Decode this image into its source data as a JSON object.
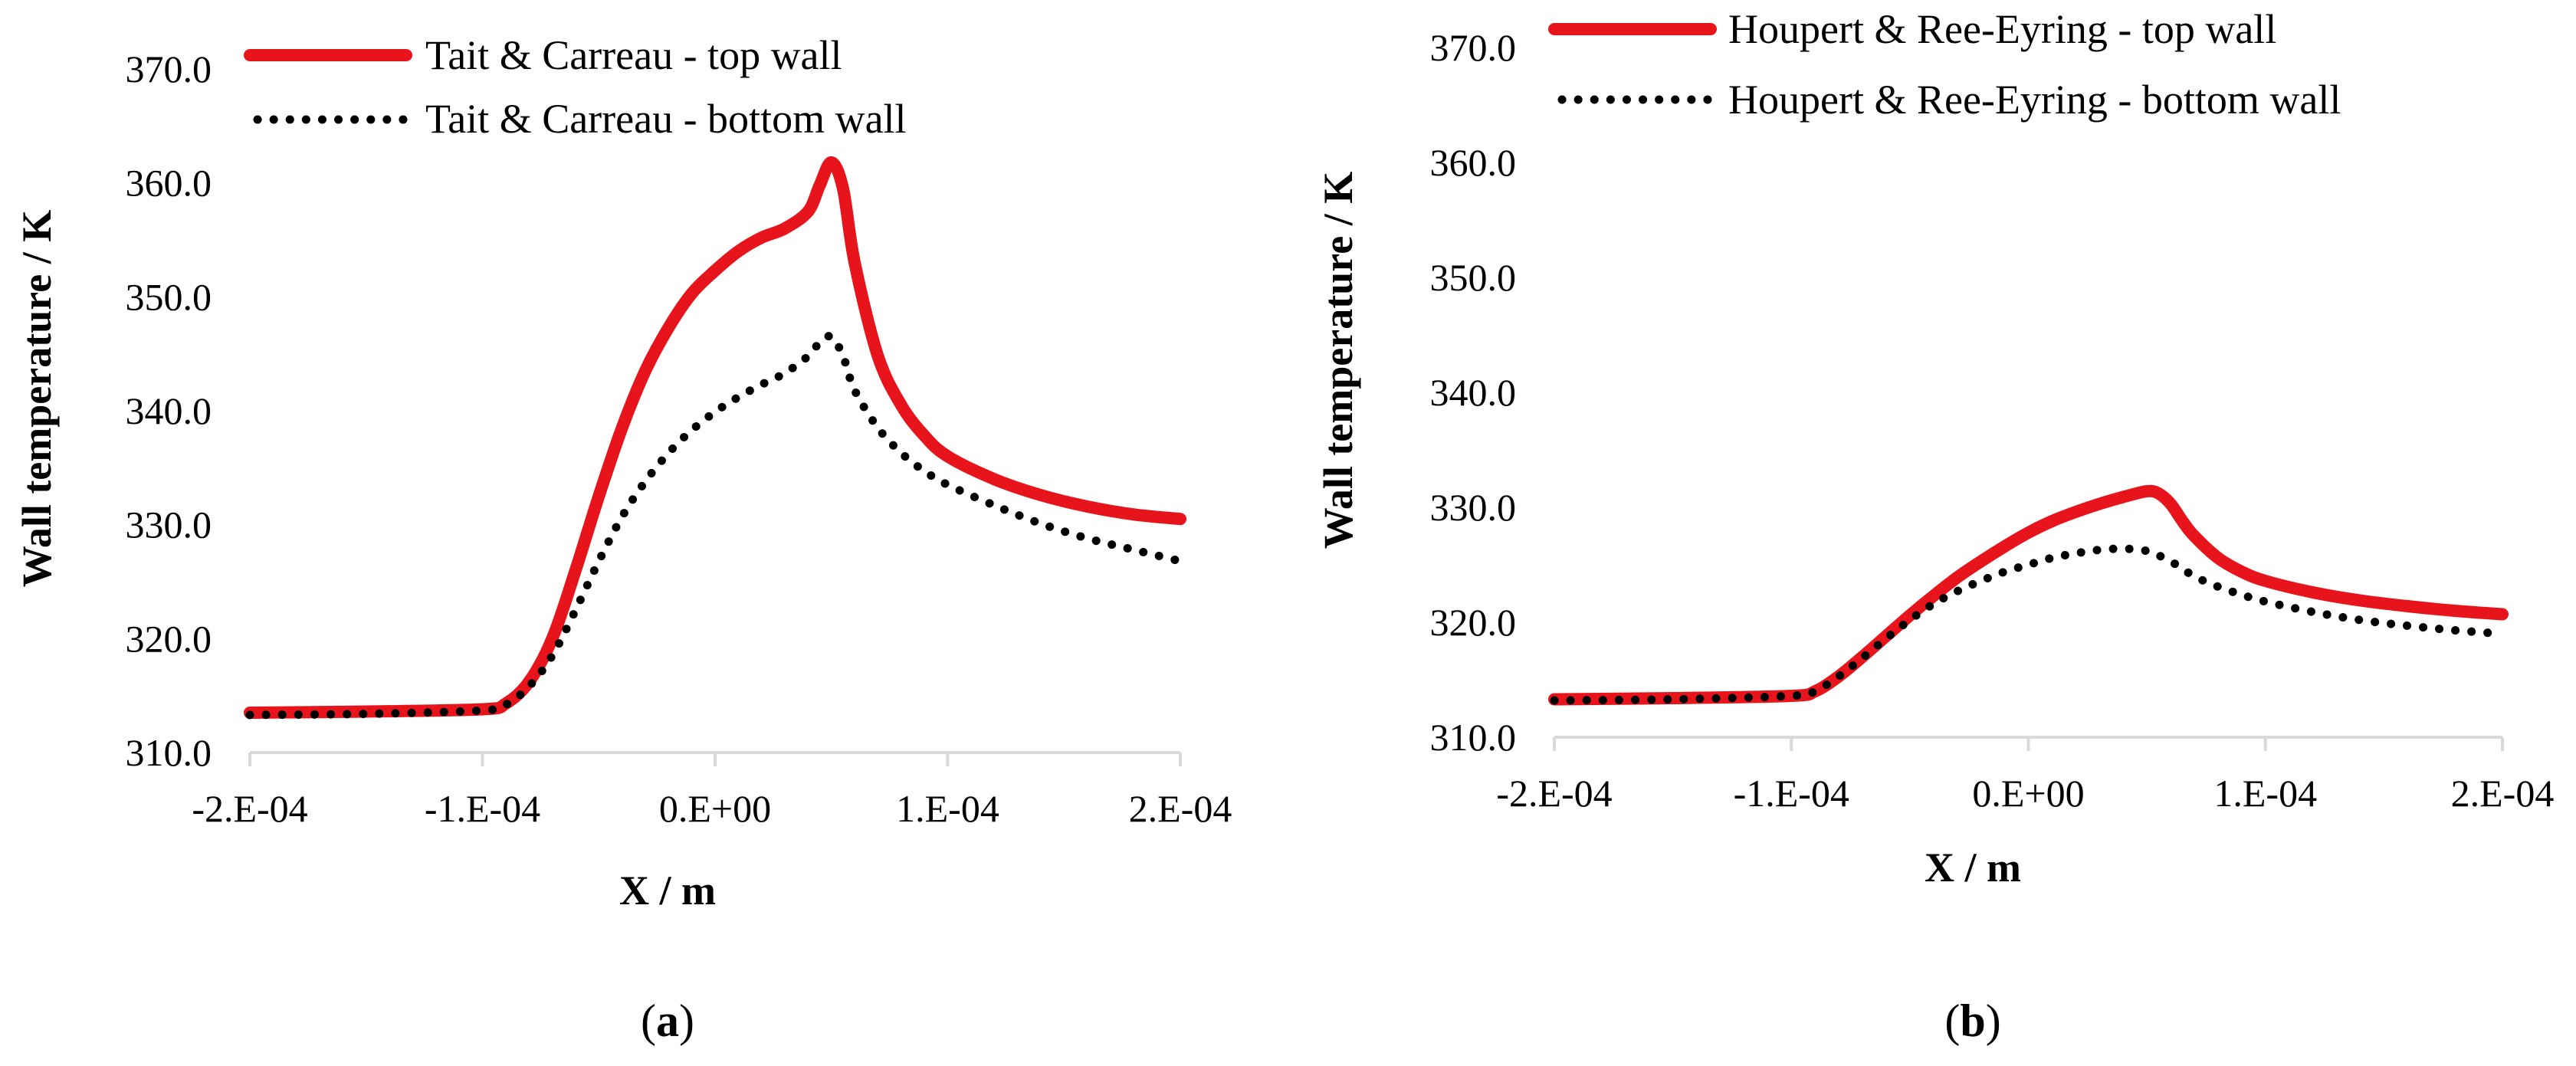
{
  "chart_data": [
    {
      "type": "line",
      "panel_label": "a",
      "title": "",
      "xlabel": "X / m",
      "ylabel": "Wall temperature / K",
      "xlim": [
        -0.0002,
        0.0002
      ],
      "ylim": [
        310,
        370
      ],
      "x_ticks": [
        -0.0002,
        -0.0001,
        0,
        0.0001,
        0.0002
      ],
      "x_tick_labels": [
        "-2.E-04",
        "-1.E-04",
        "0.E+00",
        "1.E-04",
        "2.E-04"
      ],
      "y_ticks": [
        310,
        320,
        330,
        340,
        350,
        360,
        370
      ],
      "y_tick_labels": [
        "310.0",
        "320.0",
        "330.0",
        "340.0",
        "350.0",
        "360.0",
        "370.0"
      ],
      "legend_position": "top",
      "series": [
        {
          "name": "Tait & Carreau - top wall",
          "style": "solid",
          "color": "#e8141c",
          "x": [
            -0.0002,
            -0.00015,
            -0.0001,
            -9e-05,
            -8e-05,
            -7e-05,
            -6e-05,
            -5e-05,
            -4e-05,
            -3e-05,
            -2e-05,
            -1e-05,
            0,
            1e-05,
            2e-05,
            3e-05,
            4e-05,
            4.5e-05,
            5e-05,
            5.5e-05,
            6e-05,
            7e-05,
            8e-05,
            9e-05,
            0.0001,
            0.00012,
            0.00014,
            0.00016,
            0.00018,
            0.0002
          ],
          "y": [
            313.5,
            313.6,
            313.8,
            314.3,
            316.2,
            320.0,
            326.0,
            332.5,
            338.5,
            343.5,
            347.3,
            350.3,
            352.3,
            354.0,
            355.2,
            356.0,
            357.5,
            359.8,
            361.8,
            359.5,
            353.0,
            344.8,
            340.5,
            337.8,
            336.0,
            334.0,
            332.6,
            331.6,
            330.9,
            330.5
          ]
        },
        {
          "name": "Tait & Carreau - bottom wall",
          "style": "dotted",
          "color": "#000000",
          "x": [
            -0.0002,
            -0.00015,
            -0.0001,
            -9e-05,
            -8e-05,
            -7e-05,
            -6e-05,
            -5e-05,
            -4e-05,
            -3e-05,
            -2e-05,
            -1e-05,
            0,
            1e-05,
            2e-05,
            3e-05,
            4e-05,
            4.5e-05,
            5e-05,
            5.5e-05,
            6e-05,
            7e-05,
            8e-05,
            9e-05,
            0.0001,
            0.00012,
            0.00014,
            0.00016,
            0.00018,
            0.0002
          ],
          "y": [
            313.3,
            313.4,
            313.7,
            314.2,
            315.8,
            318.5,
            322.5,
            326.8,
            330.7,
            333.8,
            336.3,
            338.3,
            339.9,
            341.2,
            342.3,
            343.3,
            344.8,
            346.0,
            346.5,
            344.8,
            341.8,
            338.5,
            336.3,
            334.7,
            333.5,
            331.7,
            330.1,
            328.8,
            327.8,
            326.8
          ]
        }
      ]
    },
    {
      "type": "line",
      "panel_label": "b",
      "title": "",
      "xlabel": "X / m",
      "ylabel": "Wall temperature / K",
      "xlim": [
        -0.0002,
        0.0002
      ],
      "ylim": [
        310,
        370
      ],
      "x_ticks": [
        -0.0002,
        -0.0001,
        0,
        0.0001,
        0.0002
      ],
      "x_tick_labels": [
        "-2.E-04",
        "-1.E-04",
        "0.E+00",
        "1.E-04",
        "2.E-04"
      ],
      "y_ticks": [
        310,
        320,
        330,
        340,
        350,
        360,
        370
      ],
      "y_tick_labels": [
        "310.0",
        "320.0",
        "330.0",
        "340.0",
        "350.0",
        "360.0",
        "370.0"
      ],
      "legend_position": "top",
      "series": [
        {
          "name": "Houpert & Ree-Eyring - top wall",
          "style": "solid",
          "color": "#e8141c",
          "x": [
            -0.0002,
            -0.00015,
            -0.0001,
            -9e-05,
            -8e-05,
            -7e-05,
            -6e-05,
            -5e-05,
            -4e-05,
            -3e-05,
            -2e-05,
            -1e-05,
            0,
            1e-05,
            2e-05,
            3e-05,
            4e-05,
            5e-05,
            5.5e-05,
            6e-05,
            6.5e-05,
            7e-05,
            8e-05,
            9e-05,
            0.0001,
            0.00012,
            0.00014,
            0.00016,
            0.00018,
            0.0002
          ],
          "y": [
            313.3,
            313.4,
            313.6,
            314.0,
            315.3,
            317.0,
            318.8,
            320.6,
            322.3,
            323.9,
            325.3,
            326.6,
            327.8,
            328.8,
            329.6,
            330.3,
            330.9,
            331.4,
            331.2,
            330.3,
            328.8,
            327.5,
            325.6,
            324.4,
            323.6,
            322.6,
            321.9,
            321.4,
            321.0,
            320.7
          ]
        },
        {
          "name": "Houpert & Ree-Eyring - bottom wall",
          "style": "dotted",
          "color": "#000000",
          "x": [
            -0.0002,
            -0.00015,
            -0.0001,
            -9e-05,
            -8e-05,
            -7e-05,
            -6e-05,
            -5e-05,
            -4e-05,
            -3e-05,
            -2e-05,
            -1e-05,
            0,
            1e-05,
            2e-05,
            3e-05,
            4e-05,
            5e-05,
            6e-05,
            7e-05,
            8e-05,
            9e-05,
            0.0001,
            0.00012,
            0.00014,
            0.00016,
            0.00018,
            0.0002
          ],
          "y": [
            313.2,
            313.3,
            313.6,
            314.0,
            315.3,
            316.9,
            318.6,
            320.2,
            321.6,
            322.7,
            323.6,
            324.4,
            325.0,
            325.6,
            326.0,
            326.3,
            326.4,
            326.2,
            325.3,
            324.0,
            323.1,
            322.4,
            321.8,
            320.9,
            320.2,
            319.7,
            319.3,
            319.0
          ]
        }
      ]
    }
  ]
}
